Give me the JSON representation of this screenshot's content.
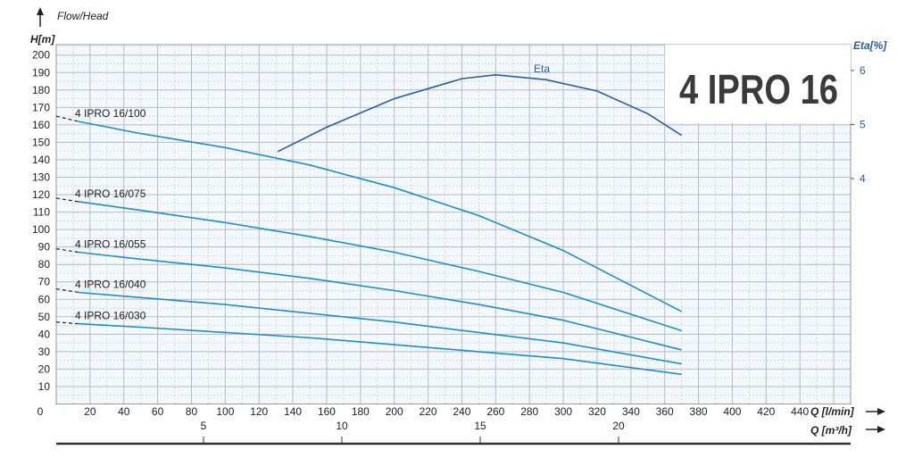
{
  "chart_data": {
    "type": "line",
    "title": "4 IPRO 16",
    "subtitle": "Flow/Head",
    "ylabel": "H[m]",
    "y2label": "Eta[%]",
    "xlabel": "Q [l/min]",
    "x2label": "Q [m³/h]",
    "xlim": [
      0,
      470
    ],
    "ylim": [
      0,
      206
    ],
    "y2ticks": [
      4,
      5,
      6
    ],
    "xticks": [
      0,
      20,
      40,
      60,
      80,
      100,
      120,
      140,
      160,
      180,
      200,
      220,
      240,
      260,
      280,
      300,
      320,
      340,
      360,
      380,
      400,
      420,
      440
    ],
    "yticks": [
      10,
      20,
      30,
      40,
      50,
      60,
      70,
      80,
      90,
      100,
      110,
      120,
      130,
      140,
      150,
      160,
      170,
      180,
      190,
      200
    ],
    "x2ticks": [
      5,
      10,
      15,
      20
    ],
    "grid": true,
    "colors": {
      "curve": "#1f8fc4",
      "eta": "#2a5d9f",
      "title": "#3a3a3a",
      "plot_bg": "#f2f8fc"
    },
    "series": [
      {
        "name": "4 IPRO 16/100",
        "x": [
          13,
          50,
          100,
          150,
          200,
          250,
          300,
          370
        ],
        "y": [
          162,
          155,
          147,
          137,
          124,
          108,
          88,
          53
        ],
        "extrapolated": [
          [
            0,
            165
          ],
          [
            13,
            162
          ]
        ]
      },
      {
        "name": "4 IPRO 16/075",
        "x": [
          13,
          50,
          100,
          150,
          200,
          250,
          300,
          370
        ],
        "y": [
          116,
          111,
          104,
          96,
          87,
          76,
          64,
          42
        ],
        "extrapolated": [
          [
            0,
            118
          ],
          [
            13,
            116
          ]
        ]
      },
      {
        "name": "4 IPRO 16/055",
        "x": [
          13,
          50,
          100,
          150,
          200,
          250,
          300,
          370
        ],
        "y": [
          87,
          83,
          78,
          72,
          65,
          57,
          48,
          31
        ],
        "extrapolated": [
          [
            0,
            89
          ],
          [
            13,
            87
          ]
        ]
      },
      {
        "name": "4 IPRO 16/040",
        "x": [
          13,
          50,
          100,
          150,
          200,
          250,
          300,
          370
        ],
        "y": [
          64,
          61,
          57,
          52,
          47,
          41,
          35,
          23
        ],
        "extrapolated": [
          [
            0,
            66
          ],
          [
            13,
            64
          ]
        ]
      },
      {
        "name": "4 IPRO 16/030",
        "x": [
          13,
          50,
          100,
          150,
          200,
          250,
          300,
          370
        ],
        "y": [
          46,
          44,
          41,
          38,
          34,
          30,
          26,
          17
        ],
        "extrapolated": [
          [
            0,
            47
          ],
          [
            13,
            46
          ]
        ]
      },
      {
        "name": "Eta",
        "axis": "y2",
        "x": [
          131,
          160,
          200,
          240,
          260,
          290,
          320,
          350,
          370
        ],
        "y": [
          4.5,
          4.95,
          5.48,
          5.85,
          5.92,
          5.83,
          5.62,
          5.2,
          4.8
        ]
      }
    ]
  }
}
